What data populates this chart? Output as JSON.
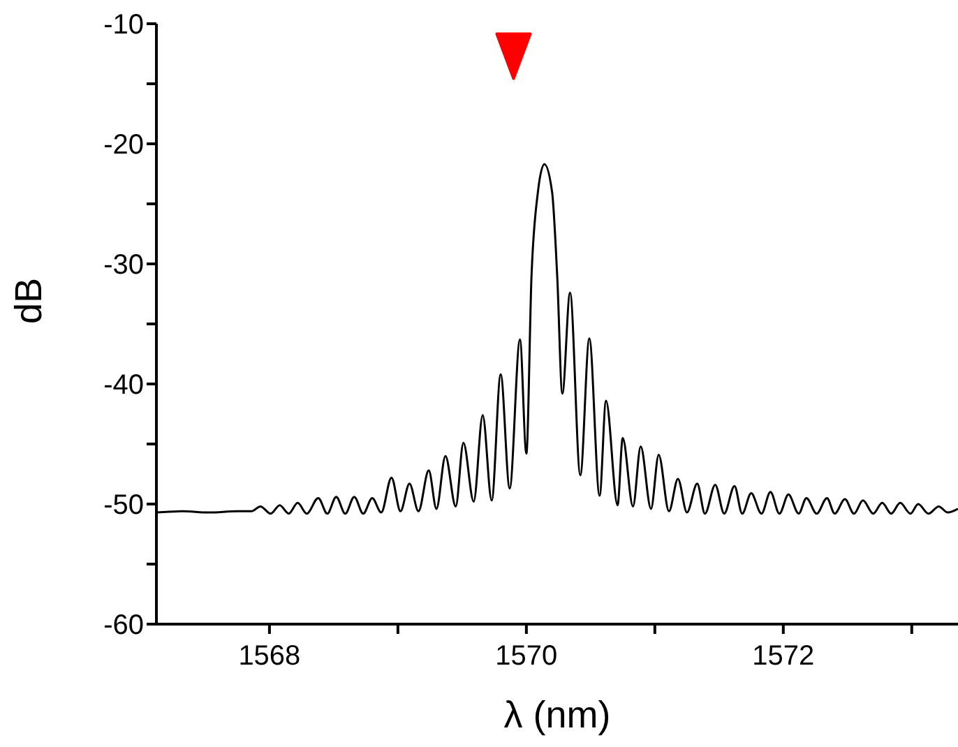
{
  "chart_data": {
    "type": "line",
    "xlabel": "λ (nm)",
    "ylabel": "dB",
    "xlim": [
      1567.12,
      1573.36
    ],
    "xticks": [
      1568,
      {
        "value": 1569,
        "label": null
      },
      1570,
      {
        "value": 1571,
        "label": null
      },
      1572,
      {
        "value": 1573,
        "label": null
      }
    ],
    "ylim": [
      -60,
      -10
    ],
    "yticks": [
      -60,
      {
        "value": -55,
        "label": null
      },
      -50,
      {
        "value": -45,
        "label": null
      },
      -40,
      {
        "value": -35,
        "label": null
      },
      -30,
      {
        "value": -25,
        "label": null
      },
      -20,
      {
        "value": -15,
        "label": null
      },
      -10
    ],
    "grid": false,
    "marker": "none",
    "line_style": "solid",
    "series": [
      {
        "color": "#000000",
        "x": [
          1567.12,
          1567.32,
          1567.53,
          1567.75,
          1567.86,
          1567.93,
          1568.01,
          1568.08,
          1568.15,
          1568.22,
          1568.29,
          1568.38,
          1568.45,
          1568.52,
          1568.59,
          1568.66,
          1568.73,
          1568.8,
          1568.87,
          1568.95,
          1569.02,
          1569.09,
          1569.16,
          1569.24,
          1569.3,
          1569.37,
          1569.45,
          1569.51,
          1569.59,
          1569.66,
          1569.73,
          1569.8,
          1569.87,
          1569.95,
          1570,
          1570.04,
          1570.09,
          1570.14,
          1570.2,
          1570.24,
          1570.28,
          1570.34,
          1570.42,
          1570.49,
          1570.57,
          1570.62,
          1570.71,
          1570.75,
          1570.83,
          1570.89,
          1570.97,
          1571.03,
          1571.11,
          1571.18,
          1571.25,
          1571.33,
          1571.39,
          1571.47,
          1571.54,
          1571.62,
          1571.68,
          1571.75,
          1571.83,
          1571.9,
          1571.97,
          1572.04,
          1572.12,
          1572.18,
          1572.26,
          1572.34,
          1572.4,
          1572.48,
          1572.55,
          1572.62,
          1572.7,
          1572.77,
          1572.84,
          1572.91,
          1572.99,
          1573.05,
          1573.13,
          1573.21,
          1573.28,
          1573.36
        ],
        "values": [
          -50.7,
          -50.6,
          -50.7,
          -50.6,
          -50.6,
          -50.2,
          -50.8,
          -50.1,
          -50.8,
          -49.9,
          -50.8,
          -49.5,
          -50.8,
          -49.4,
          -50.8,
          -49.4,
          -50.8,
          -49.5,
          -50.7,
          -47.8,
          -50.6,
          -48.3,
          -50.6,
          -47.2,
          -50.4,
          -46,
          -50.2,
          -44.9,
          -49.8,
          -42.6,
          -49.7,
          -39.2,
          -48.7,
          -36.3,
          -45.8,
          -31,
          -24,
          -21.7,
          -24,
          -31,
          -40.8,
          -32.4,
          -47.6,
          -36.2,
          -49.3,
          -41.4,
          -50.1,
          -44.5,
          -50.2,
          -45.2,
          -50.4,
          -45.9,
          -50.6,
          -47.9,
          -50.7,
          -48.3,
          -50.8,
          -48.4,
          -50.8,
          -48.5,
          -50.8,
          -49.1,
          -50.8,
          -49,
          -50.8,
          -49.2,
          -50.8,
          -49.5,
          -50.8,
          -49.5,
          -50.8,
          -49.6,
          -50.8,
          -49.7,
          -50.8,
          -49.9,
          -50.8,
          -49.9,
          -50.8,
          -50,
          -50.8,
          -50.2,
          -50.7,
          -50.4
        ]
      },
      {
        "type": "scatter",
        "color": "#ff0000",
        "marker": "triangle",
        "x": [
          1569.9
        ],
        "values": [
          -12.7
        ]
      }
    ]
  }
}
